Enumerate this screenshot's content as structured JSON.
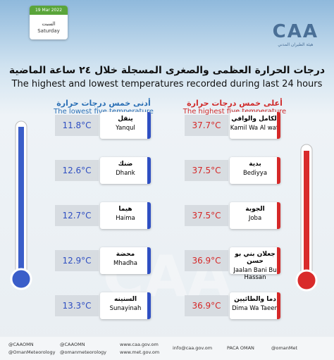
{
  "header": {
    "date": "19 Mar 2022",
    "day_ar": "السبت",
    "day_en": "Saturday",
    "logo": "CAA",
    "logo_sub": "هيئة الطيران المدني"
  },
  "title_ar": "درجات الحرارة العظمى والصغرى المسجلة خلال ٢٤ ساعة الماضية",
  "title_en": "The highest and lowest temperatures recorded during last 24 hours",
  "lowest": {
    "title_ar": "أدنى خمس درجات حرارة",
    "title_en": "The lowest five temperature",
    "rows": [
      {
        "name_ar": "ينقل",
        "name_en": "Yanqul",
        "temp": "11.8°C"
      },
      {
        "name_ar": "ضنك",
        "name_en": "Dhank",
        "temp": "12.6°C"
      },
      {
        "name_ar": "هيما",
        "name_en": "Haima",
        "temp": "12.7°C"
      },
      {
        "name_ar": "محضة",
        "name_en": "Mhadha",
        "temp": "12.9°C"
      },
      {
        "name_ar": "السنينه",
        "name_en": "Sunayinah",
        "temp": "13.3°C"
      }
    ]
  },
  "highest": {
    "title_ar": "أعلى خمس درجات حرارة",
    "title_en": "The highest five temperature",
    "rows": [
      {
        "name_ar": "الكامل والوافي",
        "name_en": "Kamil Wa Al wafi",
        "temp": "37.7°C"
      },
      {
        "name_ar": "بدية",
        "name_en": "Bediyya",
        "temp": "37.5°C"
      },
      {
        "name_ar": "الجوبة",
        "name_en": "Joba",
        "temp": "37.5°C"
      },
      {
        "name_ar": "جعلان بني بو حسن",
        "name_en": "Jaalan Bani Bu Hassan",
        "temp": "36.9°C"
      },
      {
        "name_ar": "دما والطائيين",
        "name_en": "Dima Wa Taeen",
        "temp": "36.9°C"
      }
    ]
  },
  "footer": [
    "@CAAOMN",
    "@OmanMeteorology",
    "@CAAOMN",
    "@omanmeteorology",
    "www.caa.gov.om",
    "www.met.gov.om",
    "info@caa.gov.om",
    "PACA OMAN",
    "@omanMet"
  ]
}
